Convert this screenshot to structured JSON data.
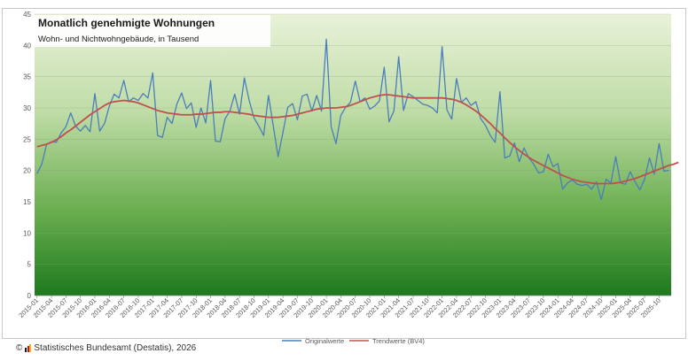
{
  "chart_data": {
    "type": "line",
    "title": "Monatlich genehmigte Wohnungen",
    "subtitle": "Wohn- und Nichtwohngebäude, in Tausend",
    "ylim": [
      0,
      45
    ],
    "yticks": [
      0,
      5,
      10,
      15,
      20,
      25,
      30,
      35,
      40,
      45
    ],
    "grid": "horizontal",
    "legend_position": "bottom",
    "x_tick_labels": [
      "2015-01",
      "2015-04",
      "2015-07",
      "2015-10",
      "2016-01",
      "2016-04",
      "2016-07",
      "2016-10",
      "2017-01",
      "2017-04",
      "2017-07",
      "2017-10",
      "2018-01",
      "2018-04",
      "2018-07",
      "2018-10",
      "2019-01",
      "2019-04",
      "2019-07",
      "2019-10",
      "2020-01",
      "2020-04",
      "2020-07",
      "2020-10",
      "2021-01",
      "2021-04",
      "2021-07",
      "2021-10",
      "2022-01",
      "2022-04",
      "2022-07",
      "2022-10",
      "2023-01",
      "2023-04",
      "2023-07",
      "2023-10",
      "2024-01",
      "2024-04",
      "2024-07",
      "2024-10",
      "2025-01",
      "2025-04",
      "2025-07",
      "2025-10"
    ],
    "series": [
      {
        "name": "Originalwerte",
        "color": "#4a7ebb",
        "values": [
          19.5,
          21.0,
          24.2,
          24.6,
          24.5,
          26.0,
          27.0,
          29.2,
          27.1,
          26.3,
          27.2,
          26.2,
          32.3,
          26.3,
          27.5,
          30.3,
          32.2,
          31.6,
          34.4,
          31.0,
          31.6,
          31.2,
          32.3,
          31.6,
          35.6,
          25.6,
          25.3,
          28.5,
          27.5,
          30.6,
          32.4,
          29.9,
          30.8,
          26.9,
          30.0,
          27.6,
          34.4,
          24.7,
          24.6,
          28.3,
          29.5,
          32.2,
          29.0,
          34.8,
          31.2,
          28.4,
          27.1,
          25.6,
          32.0,
          27.1,
          22.2,
          26.1,
          30.1,
          30.7,
          28.1,
          31.9,
          32.2,
          29.5,
          32.0,
          29.5,
          41.0,
          27.0,
          24.3,
          28.8,
          30.1,
          30.9,
          34.3,
          31.0,
          31.6,
          29.8,
          30.3,
          31.1,
          36.5,
          27.8,
          29.5,
          38.2,
          29.6,
          32.3,
          31.8,
          31.2,
          30.6,
          30.4,
          30.0,
          29.2,
          39.8,
          29.7,
          28.2,
          34.7,
          30.9,
          31.6,
          30.4,
          31.0,
          28.3,
          27.2,
          25.6,
          24.5,
          32.6,
          22.0,
          22.3,
          24.4,
          21.4,
          23.6,
          22.0,
          21.0,
          19.6,
          19.8,
          22.6,
          20.6,
          21.1,
          17.0,
          18.0,
          18.5,
          17.8,
          17.6,
          17.8,
          17.0,
          18.2,
          15.3,
          18.6,
          18.0,
          22.2,
          18.0,
          17.8,
          19.8,
          18.2,
          16.9,
          18.6,
          22.0,
          19.4,
          24.3,
          19.9,
          20.0
        ]
      },
      {
        "name": "Trendwerte (BV4)",
        "color": "#c0504d",
        "values": [
          23.8,
          24.0,
          24.2,
          24.5,
          24.9,
          25.4,
          26.0,
          26.5,
          27.1,
          27.7,
          28.3,
          28.9,
          29.4,
          29.9,
          30.4,
          30.8,
          31.0,
          31.1,
          31.2,
          31.1,
          31.0,
          30.8,
          30.5,
          30.2,
          29.9,
          29.6,
          29.4,
          29.2,
          29.1,
          29.0,
          28.9,
          28.9,
          28.9,
          29.0,
          29.0,
          29.1,
          29.2,
          29.3,
          29.3,
          29.4,
          29.4,
          29.3,
          29.2,
          29.1,
          29.0,
          28.8,
          28.7,
          28.6,
          28.5,
          28.5,
          28.5,
          28.6,
          28.7,
          28.8,
          29.0,
          29.2,
          29.4,
          29.6,
          29.8,
          29.9,
          30.0,
          30.0,
          30.0,
          30.1,
          30.2,
          30.4,
          30.7,
          31.0,
          31.3,
          31.6,
          31.8,
          32.0,
          32.1,
          32.1,
          32.0,
          31.9,
          31.8,
          31.7,
          31.6,
          31.6,
          31.6,
          31.6,
          31.6,
          31.6,
          31.6,
          31.5,
          31.4,
          31.2,
          30.9,
          30.5,
          30.0,
          29.5,
          28.9,
          28.2,
          27.5,
          26.7,
          26.0,
          25.2,
          24.5,
          23.8,
          23.2,
          22.6,
          22.1,
          21.6,
          21.2,
          20.8,
          20.4,
          20.0,
          19.6,
          19.2,
          18.9,
          18.6,
          18.4,
          18.2,
          18.1,
          18.0,
          17.9,
          17.9,
          17.9,
          17.9,
          18.0,
          18.1,
          18.3,
          18.5,
          18.7,
          19.0,
          19.3,
          19.6,
          19.9,
          20.2,
          20.5,
          20.8,
          21.0,
          21.3
        ]
      }
    ]
  },
  "footer": {
    "copyright": "©",
    "source": "Statistisches Bundesamt (Destatis), 2026"
  }
}
